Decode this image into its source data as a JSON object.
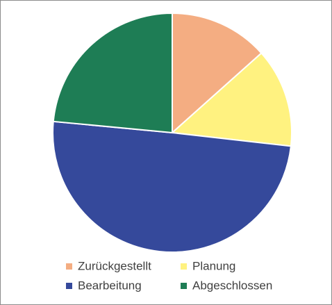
{
  "chart_data": {
    "type": "pie",
    "categories": [
      "Zurückgestellt",
      "Planung",
      "Bearbeitung",
      "Abgeschlossen"
    ],
    "values": [
      13.4,
      13.4,
      49.7,
      23.5
    ],
    "colors": [
      "#f4ad82",
      "#fff280",
      "#35499b",
      "#1e7d55"
    ],
    "legend": "bottom"
  }
}
